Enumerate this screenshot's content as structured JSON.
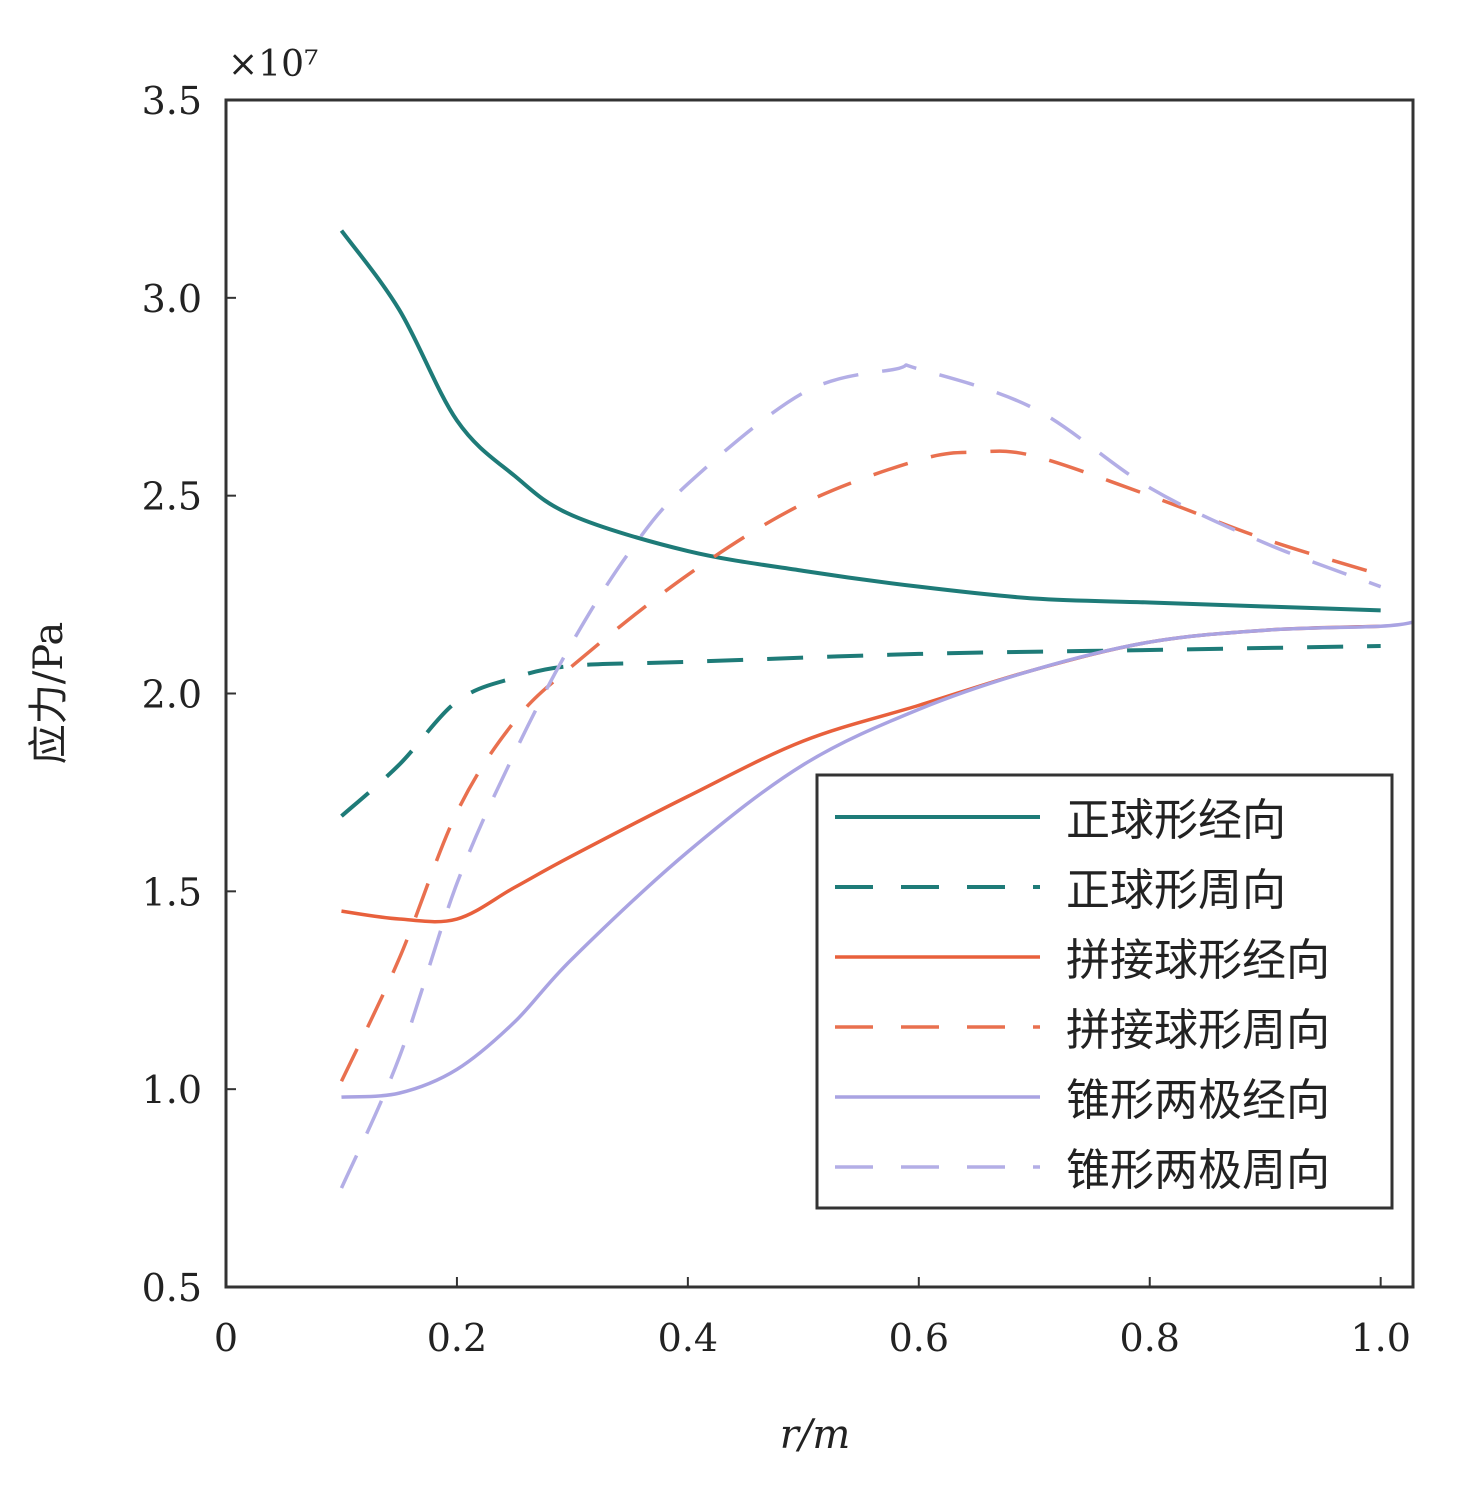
{
  "chart_data": {
    "type": "line",
    "title": "",
    "xlabel": "r/m",
    "ylabel": "应力/Pa",
    "y_multiplier": "×10⁷",
    "xlim": [
      0,
      1.028
    ],
    "ylim": [
      0.5,
      3.5
    ],
    "xticks": [
      0,
      0.2,
      0.4,
      0.6,
      0.8,
      1.0
    ],
    "xtick_labels": [
      "0",
      "0.2",
      "0.4",
      "0.6",
      "0.8",
      "1.0"
    ],
    "yticks": [
      0.5,
      1.0,
      1.5,
      2.0,
      2.5,
      3.0,
      3.5
    ],
    "ytick_labels": [
      "0.5",
      "1.0",
      "1.5",
      "2.0",
      "2.5",
      "3.0",
      "3.5"
    ],
    "grid": false,
    "legend_position": "lower-right",
    "series": [
      {
        "name": "正球形经向",
        "color": "#1e7b78",
        "dashed": false,
        "x": [
          0.1,
          0.15,
          0.2,
          0.25,
          0.3,
          0.4,
          0.5,
          0.6,
          0.7,
          0.8,
          0.9,
          1.0
        ],
        "y": [
          3.17,
          2.97,
          2.69,
          2.55,
          2.45,
          2.36,
          2.31,
          2.27,
          2.24,
          2.23,
          2.22,
          2.21
        ]
      },
      {
        "name": "正球形周向",
        "color": "#1e7b78",
        "dashed": true,
        "x": [
          0.1,
          0.15,
          0.2,
          0.25,
          0.3,
          0.4,
          0.6,
          0.8,
          1.0
        ],
        "y": [
          1.69,
          1.82,
          1.98,
          2.04,
          2.07,
          2.08,
          2.1,
          2.11,
          2.12
        ]
      },
      {
        "name": "拼接球形经向",
        "color": "#e8603c",
        "dashed": false,
        "x": [
          0.1,
          0.15,
          0.2,
          0.25,
          0.3,
          0.4,
          0.5,
          0.6,
          0.7,
          0.8,
          0.9,
          1.0
        ],
        "y": [
          1.45,
          1.43,
          1.43,
          1.51,
          1.59,
          1.74,
          1.88,
          1.97,
          2.06,
          2.13,
          2.16,
          2.17
        ]
      },
      {
        "name": "拼接球形周向",
        "color": "#e9704f",
        "dashed": true,
        "x": [
          0.1,
          0.15,
          0.2,
          0.25,
          0.3,
          0.4,
          0.5,
          0.6,
          0.65,
          0.7,
          0.8,
          0.9,
          1.0
        ],
        "y": [
          1.02,
          1.33,
          1.7,
          1.93,
          2.07,
          2.3,
          2.48,
          2.59,
          2.61,
          2.6,
          2.5,
          2.39,
          2.3
        ]
      },
      {
        "name": "锥形两极经向",
        "color": "#a9a3e2",
        "dashed": false,
        "x": [
          0.1,
          0.15,
          0.2,
          0.25,
          0.3,
          0.4,
          0.5,
          0.6,
          0.7,
          0.8,
          0.9,
          1.0,
          1.028
        ],
        "y": [
          0.98,
          0.99,
          1.05,
          1.17,
          1.33,
          1.6,
          1.82,
          1.96,
          2.06,
          2.13,
          2.16,
          2.17,
          2.18
        ]
      },
      {
        "name": "锥形两极周向",
        "color": "#b3aee6",
        "dashed": true,
        "x": [
          0.1,
          0.15,
          0.2,
          0.25,
          0.3,
          0.35,
          0.4,
          0.5,
          0.58,
          0.6,
          0.7,
          0.8,
          0.9,
          1.0
        ],
        "y": [
          0.75,
          1.08,
          1.52,
          1.85,
          2.13,
          2.36,
          2.53,
          2.76,
          2.82,
          2.82,
          2.72,
          2.52,
          2.38,
          2.27
        ]
      }
    ]
  }
}
